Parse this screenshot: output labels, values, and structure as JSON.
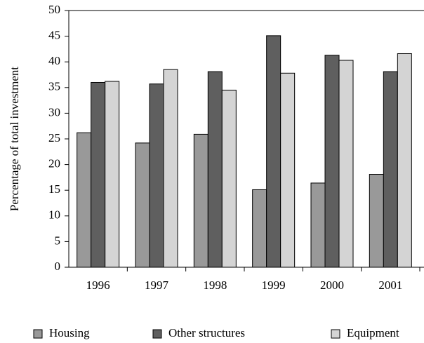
{
  "chart_data": {
    "type": "bar",
    "y_label": "Percentage of total investment",
    "categories": [
      "1996",
      "1997",
      "1998",
      "1999",
      "2000",
      "2001"
    ],
    "series": [
      {
        "name": "Housing",
        "color": "#999999",
        "values": [
          26.2,
          24.2,
          25.9,
          15.1,
          16.4,
          18.1
        ]
      },
      {
        "name": "Other structures",
        "color": "#5f5f5f",
        "values": [
          36.0,
          35.7,
          38.1,
          45.1,
          41.3,
          38.1
        ]
      },
      {
        "name": "Equipment",
        "color": "#d4d4d4",
        "values": [
          36.2,
          38.5,
          34.5,
          37.8,
          40.3,
          41.6
        ]
      }
    ],
    "ylim": [
      0,
      50
    ],
    "yticks": [
      0,
      5,
      10,
      15,
      20,
      25,
      30,
      35,
      40,
      45,
      50
    ],
    "grid": false,
    "legend": "bottom"
  }
}
